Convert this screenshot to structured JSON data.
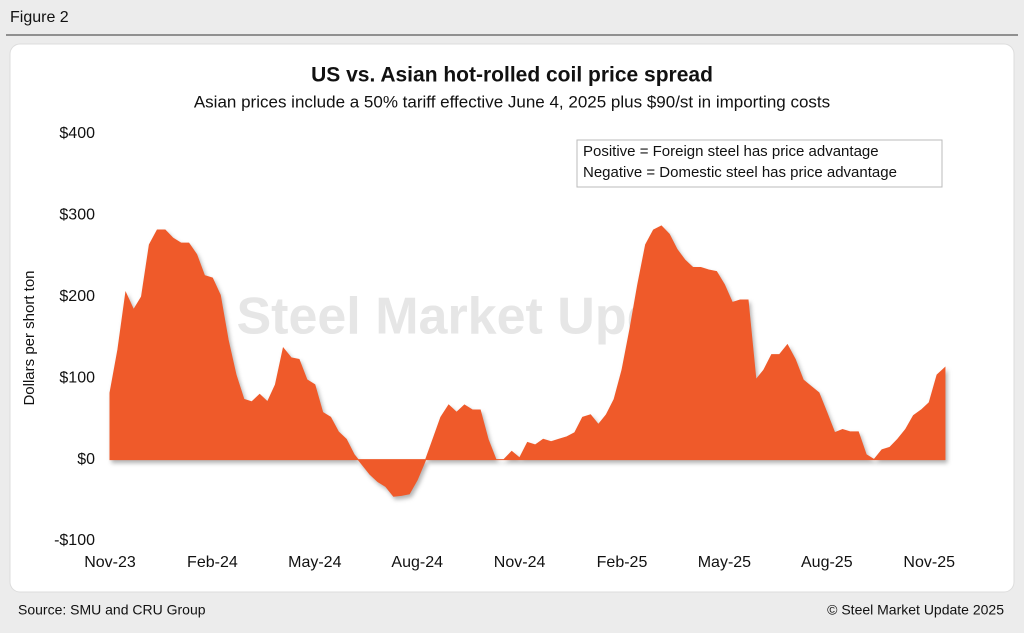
{
  "header": "Figure 2",
  "footer": {
    "source": "Source: SMU and CRU Group",
    "copyright": "© Steel Market Update 2025"
  },
  "chart_data": {
    "type": "area",
    "title": "US vs. Asian hot-rolled coil price spread",
    "subtitle": "Asian prices include a 50% tariff effective June 4, 2025 plus $90/st in importing costs",
    "y_label": "Dollars per short ton",
    "annotations": [
      "Positive = Foreign steel has price advantage",
      "Negative = Domestic steel has price advantage"
    ],
    "watermark": "Steel Market Update",
    "color": "#ef5a2a",
    "categories": [
      "Nov-23",
      null,
      null,
      null,
      null,
      null,
      null,
      null,
      null,
      null,
      null,
      null,
      null,
      "Feb-24",
      null,
      null,
      null,
      null,
      null,
      null,
      null,
      null,
      null,
      null,
      null,
      null,
      "May-24",
      null,
      null,
      null,
      null,
      null,
      null,
      null,
      null,
      null,
      null,
      null,
      null,
      "Aug-24",
      null,
      null,
      null,
      null,
      null,
      null,
      null,
      null,
      null,
      null,
      null,
      null,
      "Nov-24",
      null,
      null,
      null,
      null,
      null,
      null,
      null,
      null,
      null,
      null,
      null,
      null,
      "Feb-25",
      null,
      null,
      null,
      null,
      null,
      null,
      null,
      null,
      null,
      null,
      null,
      null,
      "May-25",
      null,
      null,
      null,
      null,
      null,
      null,
      null,
      null,
      null,
      null,
      null,
      null,
      "Aug-25",
      null,
      null,
      null,
      null,
      null,
      null,
      null,
      null,
      null,
      null,
      null,
      null,
      "Nov-25",
      null,
      null
    ],
    "values": [
      82,
      135,
      205,
      184,
      200,
      264,
      282,
      282,
      272,
      266,
      266,
      252,
      226,
      223,
      202,
      147,
      104,
      74,
      71,
      80,
      71,
      92,
      137,
      125,
      123,
      98,
      92,
      58,
      52,
      34,
      25,
      6,
      -6,
      -18,
      -27,
      -33,
      -45,
      -44,
      -42,
      -25,
      -2,
      25,
      52,
      67,
      58,
      67,
      61,
      61,
      25,
      0,
      0,
      10,
      2,
      21,
      18,
      25,
      22,
      25,
      28,
      33,
      52,
      55,
      43,
      55,
      74,
      110,
      160,
      215,
      264,
      282,
      287,
      277,
      258,
      245,
      236,
      236,
      233,
      231,
      215,
      193,
      196,
      196,
      98,
      110,
      129,
      129,
      141,
      123,
      98,
      90,
      82,
      58,
      33,
      37,
      34,
      34,
      6,
      0,
      12,
      15,
      25,
      37,
      54,
      61,
      70,
      104,
      113
    ],
    "ylim": [
      -100,
      400
    ],
    "yticks": [
      {
        "value": -100,
        "label": "-$100"
      },
      {
        "value": 0,
        "label": "$0"
      },
      {
        "value": 100,
        "label": "$100"
      },
      {
        "value": 200,
        "label": "$200"
      },
      {
        "value": 300,
        "label": "$300"
      },
      {
        "value": 400,
        "label": "$400"
      }
    ],
    "grid": false
  }
}
